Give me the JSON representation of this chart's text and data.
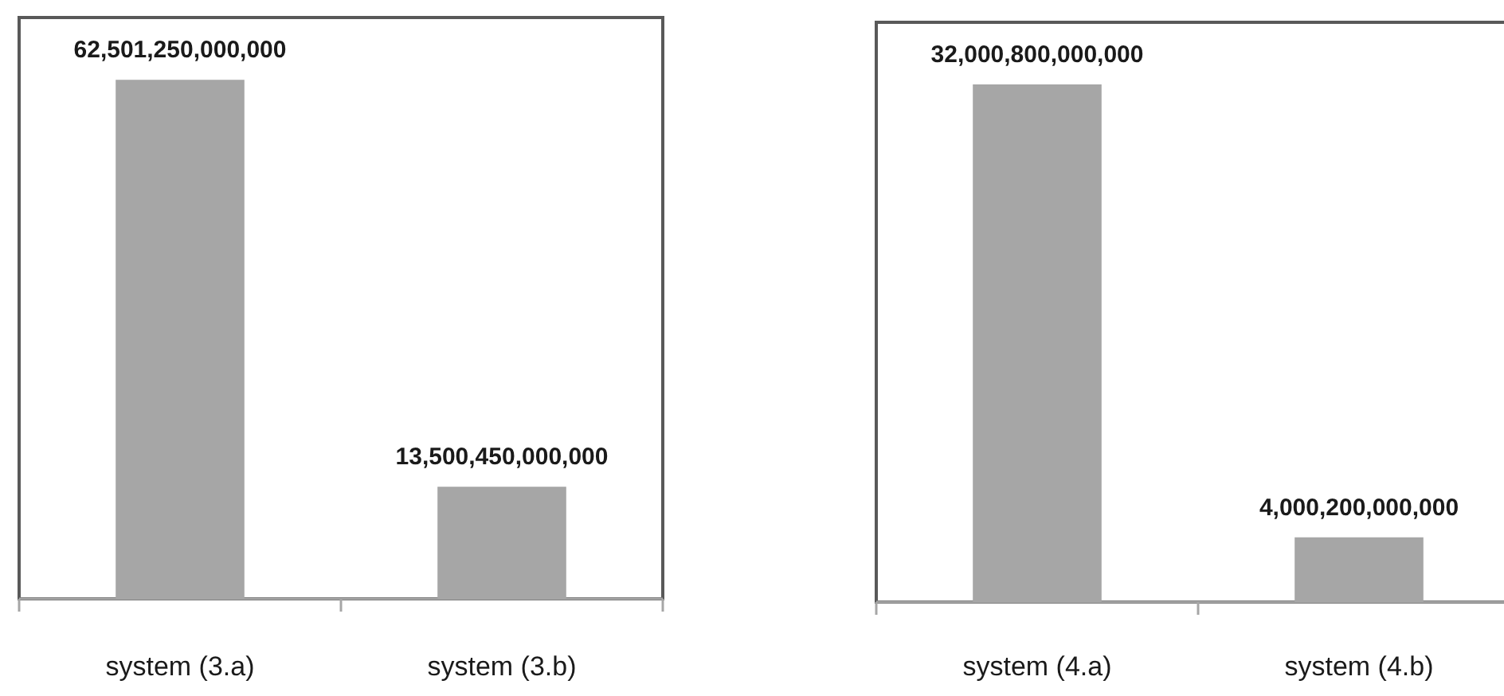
{
  "chart_data": [
    {
      "type": "bar",
      "categories": [
        "system (3.a)",
        "system (3.b)"
      ],
      "values": [
        62501250000000,
        13500450000000
      ],
      "color": "#a6a6a6",
      "data_labels": true,
      "value_labels": [
        "62,501,250,000,000",
        "13,500,450,000,000"
      ],
      "tick_labels": "x"
    },
    {
      "type": "bar",
      "categories": [
        "system (4.a)",
        "system (4.b)"
      ],
      "values": [
        32000800000000,
        4000200000000
      ],
      "color": "#a6a6a6",
      "data_labels": true,
      "value_labels": [
        "32,000,800,000,000",
        "4,000,200,000,000"
      ],
      "tick_labels": "x"
    }
  ]
}
